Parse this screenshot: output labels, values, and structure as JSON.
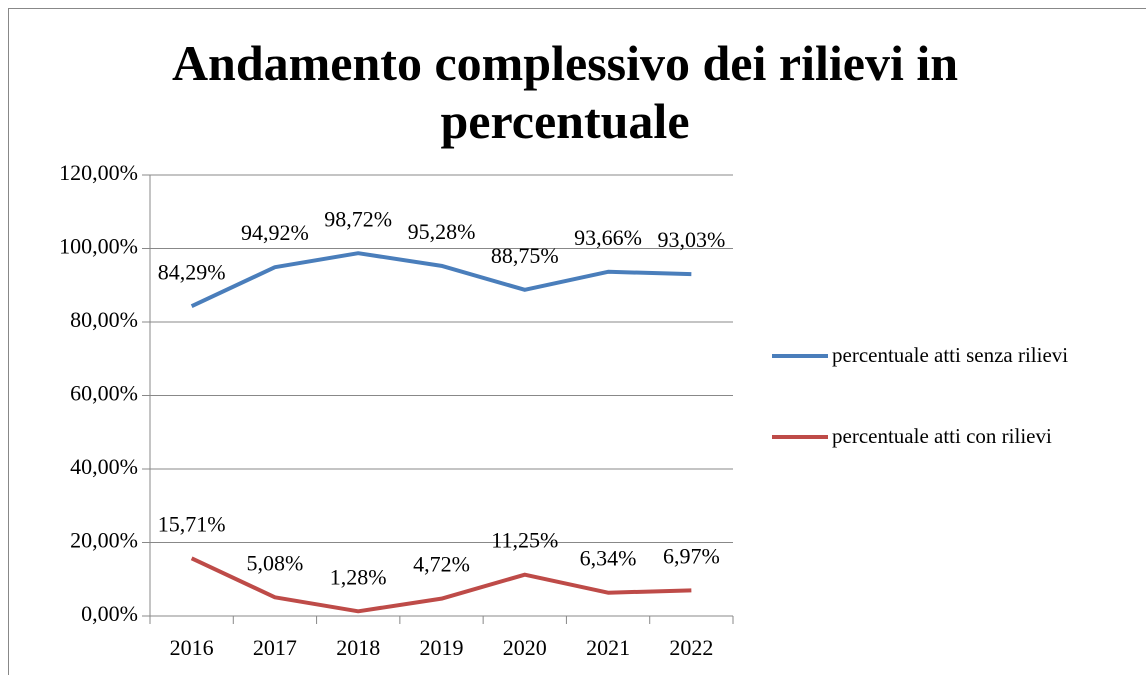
{
  "chart_data": {
    "type": "line",
    "title": "Andamento complessivo dei rilievi in percentuale",
    "categories": [
      "2016",
      "2017",
      "2018",
      "2019",
      "2020",
      "2021",
      "2022"
    ],
    "series": [
      {
        "name": "percentuale atti senza rilievi",
        "color": "#4a7ebb",
        "values": [
          84.29,
          94.92,
          98.72,
          95.28,
          88.75,
          93.66,
          93.03
        ],
        "value_labels": [
          "84,29%",
          "94,92%",
          "98,72%",
          "95,28%",
          "88,75%",
          "93,66%",
          "93,03%"
        ]
      },
      {
        "name": "percentuale atti con rilievi",
        "color": "#be4b48",
        "values": [
          15.71,
          5.08,
          1.28,
          4.72,
          11.25,
          6.34,
          6.97
        ],
        "value_labels": [
          "15,71%",
          "5,08%",
          "1,28%",
          "4,72%",
          "11,25%",
          "6,34%",
          "6,97%"
        ]
      }
    ],
    "ylim": [
      0,
      120
    ],
    "yticks": [
      {
        "value": 0,
        "label": "0,00%"
      },
      {
        "value": 20,
        "label": "20,00%"
      },
      {
        "value": 40,
        "label": "40,00%"
      },
      {
        "value": 60,
        "label": "60,00%"
      },
      {
        "value": 80,
        "label": "80,00%"
      },
      {
        "value": 100,
        "label": "100,00%"
      },
      {
        "value": 120,
        "label": "120,00%"
      }
    ],
    "grid": true,
    "legend": "right"
  }
}
